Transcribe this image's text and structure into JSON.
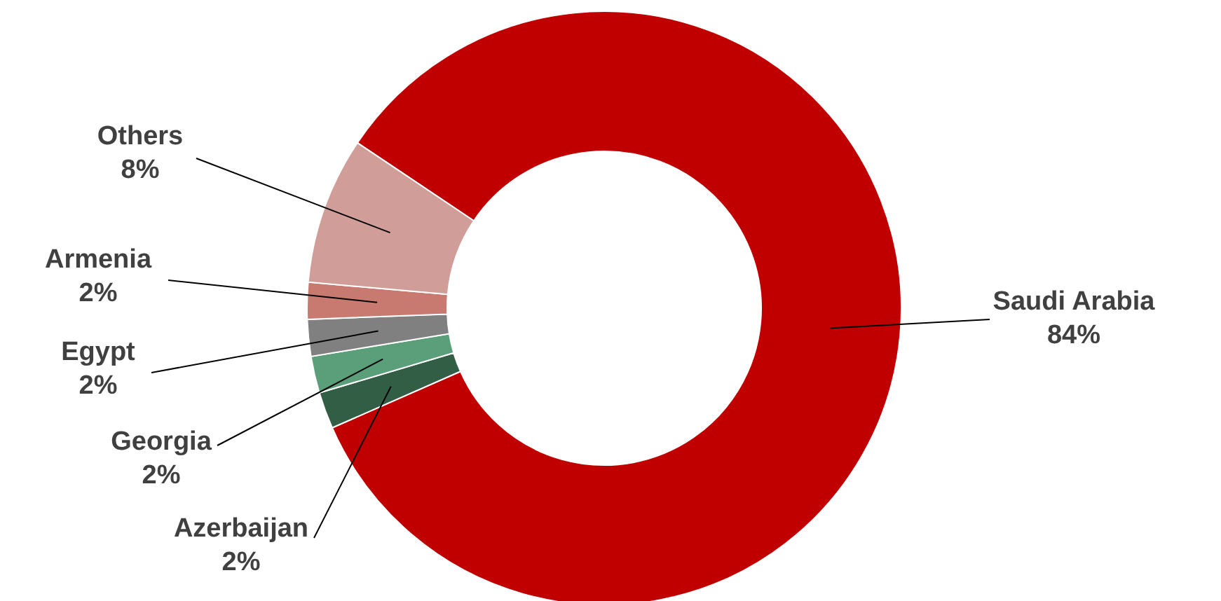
{
  "chart_data": {
    "type": "donut",
    "categories": [
      "Saudi Arabia",
      "Azerbaijan",
      "Georgia",
      "Egypt",
      "Armenia",
      "Others"
    ],
    "values": [
      84,
      2,
      2,
      2,
      2,
      8
    ],
    "value_labels": [
      "84%",
      "2%",
      "2%",
      "2%",
      "2%",
      "8%"
    ],
    "colors": [
      "#c00000",
      "#335e46",
      "#5a9e7a",
      "#808080",
      "#c87a70",
      "#d09d98"
    ]
  }
}
